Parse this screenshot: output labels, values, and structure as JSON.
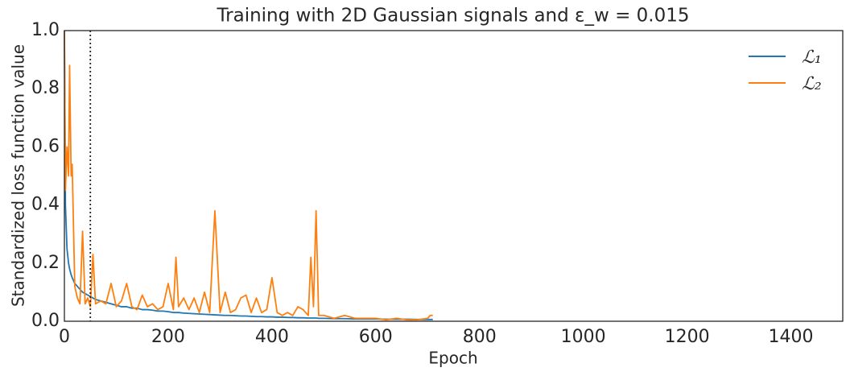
{
  "chart_data": {
    "type": "line",
    "title": "Training with 2D Gaussian signals and ε_w = 0.015",
    "xlabel": "Epoch",
    "ylabel": "Standardized loss function value",
    "x": [
      0,
      2,
      5,
      8,
      10,
      13,
      15,
      20,
      25,
      30,
      35,
      40,
      45,
      50,
      55,
      60,
      70,
      80,
      90,
      100,
      110,
      120,
      130,
      140,
      150,
      160,
      170,
      180,
      190,
      200,
      210,
      215,
      220,
      230,
      240,
      250,
      260,
      270,
      280,
      290,
      300,
      310,
      320,
      330,
      340,
      350,
      360,
      370,
      380,
      390,
      400,
      410,
      420,
      430,
      440,
      450,
      460,
      470,
      475,
      480,
      485,
      490,
      500,
      520,
      540,
      560,
      580,
      600,
      620,
      640,
      660,
      680,
      700,
      705,
      710
    ],
    "series": [
      {
        "name": "ℒ₁",
        "color": "#1f77b4",
        "values": [
          1.0,
          0.4,
          0.25,
          0.2,
          0.18,
          0.16,
          0.15,
          0.13,
          0.12,
          0.11,
          0.1,
          0.095,
          0.09,
          0.085,
          0.08,
          0.075,
          0.07,
          0.065,
          0.06,
          0.055,
          0.05,
          0.05,
          0.045,
          0.045,
          0.04,
          0.04,
          0.038,
          0.035,
          0.035,
          0.033,
          0.03,
          0.03,
          0.03,
          0.028,
          0.027,
          0.026,
          0.025,
          0.024,
          0.023,
          0.022,
          0.021,
          0.02,
          0.02,
          0.019,
          0.018,
          0.018,
          0.017,
          0.016,
          0.016,
          0.015,
          0.015,
          0.014,
          0.014,
          0.013,
          0.013,
          0.012,
          0.012,
          0.011,
          0.011,
          0.011,
          0.011,
          0.01,
          0.01,
          0.009,
          0.009,
          0.008,
          0.008,
          0.008,
          0.007,
          0.007,
          0.007,
          0.006,
          0.006,
          0.006,
          0.006
        ]
      },
      {
        "name": "ℒ₂",
        "color": "#ff7f0e",
        "values": [
          1.0,
          0.45,
          0.6,
          0.5,
          0.88,
          0.5,
          0.54,
          0.12,
          0.08,
          0.06,
          0.31,
          0.06,
          0.08,
          0.05,
          0.23,
          0.06,
          0.07,
          0.06,
          0.13,
          0.05,
          0.07,
          0.13,
          0.05,
          0.04,
          0.09,
          0.05,
          0.06,
          0.04,
          0.05,
          0.13,
          0.04,
          0.22,
          0.05,
          0.08,
          0.04,
          0.08,
          0.03,
          0.1,
          0.03,
          0.38,
          0.03,
          0.1,
          0.03,
          0.04,
          0.08,
          0.09,
          0.03,
          0.08,
          0.03,
          0.04,
          0.15,
          0.03,
          0.02,
          0.03,
          0.02,
          0.05,
          0.04,
          0.02,
          0.22,
          0.05,
          0.38,
          0.02,
          0.02,
          0.01,
          0.02,
          0.01,
          0.01,
          0.01,
          0.005,
          0.01,
          0.005,
          0.005,
          0.01,
          0.02,
          0.02
        ]
      }
    ],
    "vline": 50,
    "xlim": [
      0,
      1500
    ],
    "xticks": [
      0,
      200,
      400,
      600,
      800,
      1000,
      1200,
      1400
    ],
    "ylim": [
      0,
      1
    ],
    "yticks": [
      {
        "value": 0,
        "label": "0.0"
      },
      0.2,
      0.4,
      0.6,
      0.8,
      {
        "value": 1,
        "label": "1.0"
      }
    ],
    "grid": false,
    "legend": "upper right"
  }
}
